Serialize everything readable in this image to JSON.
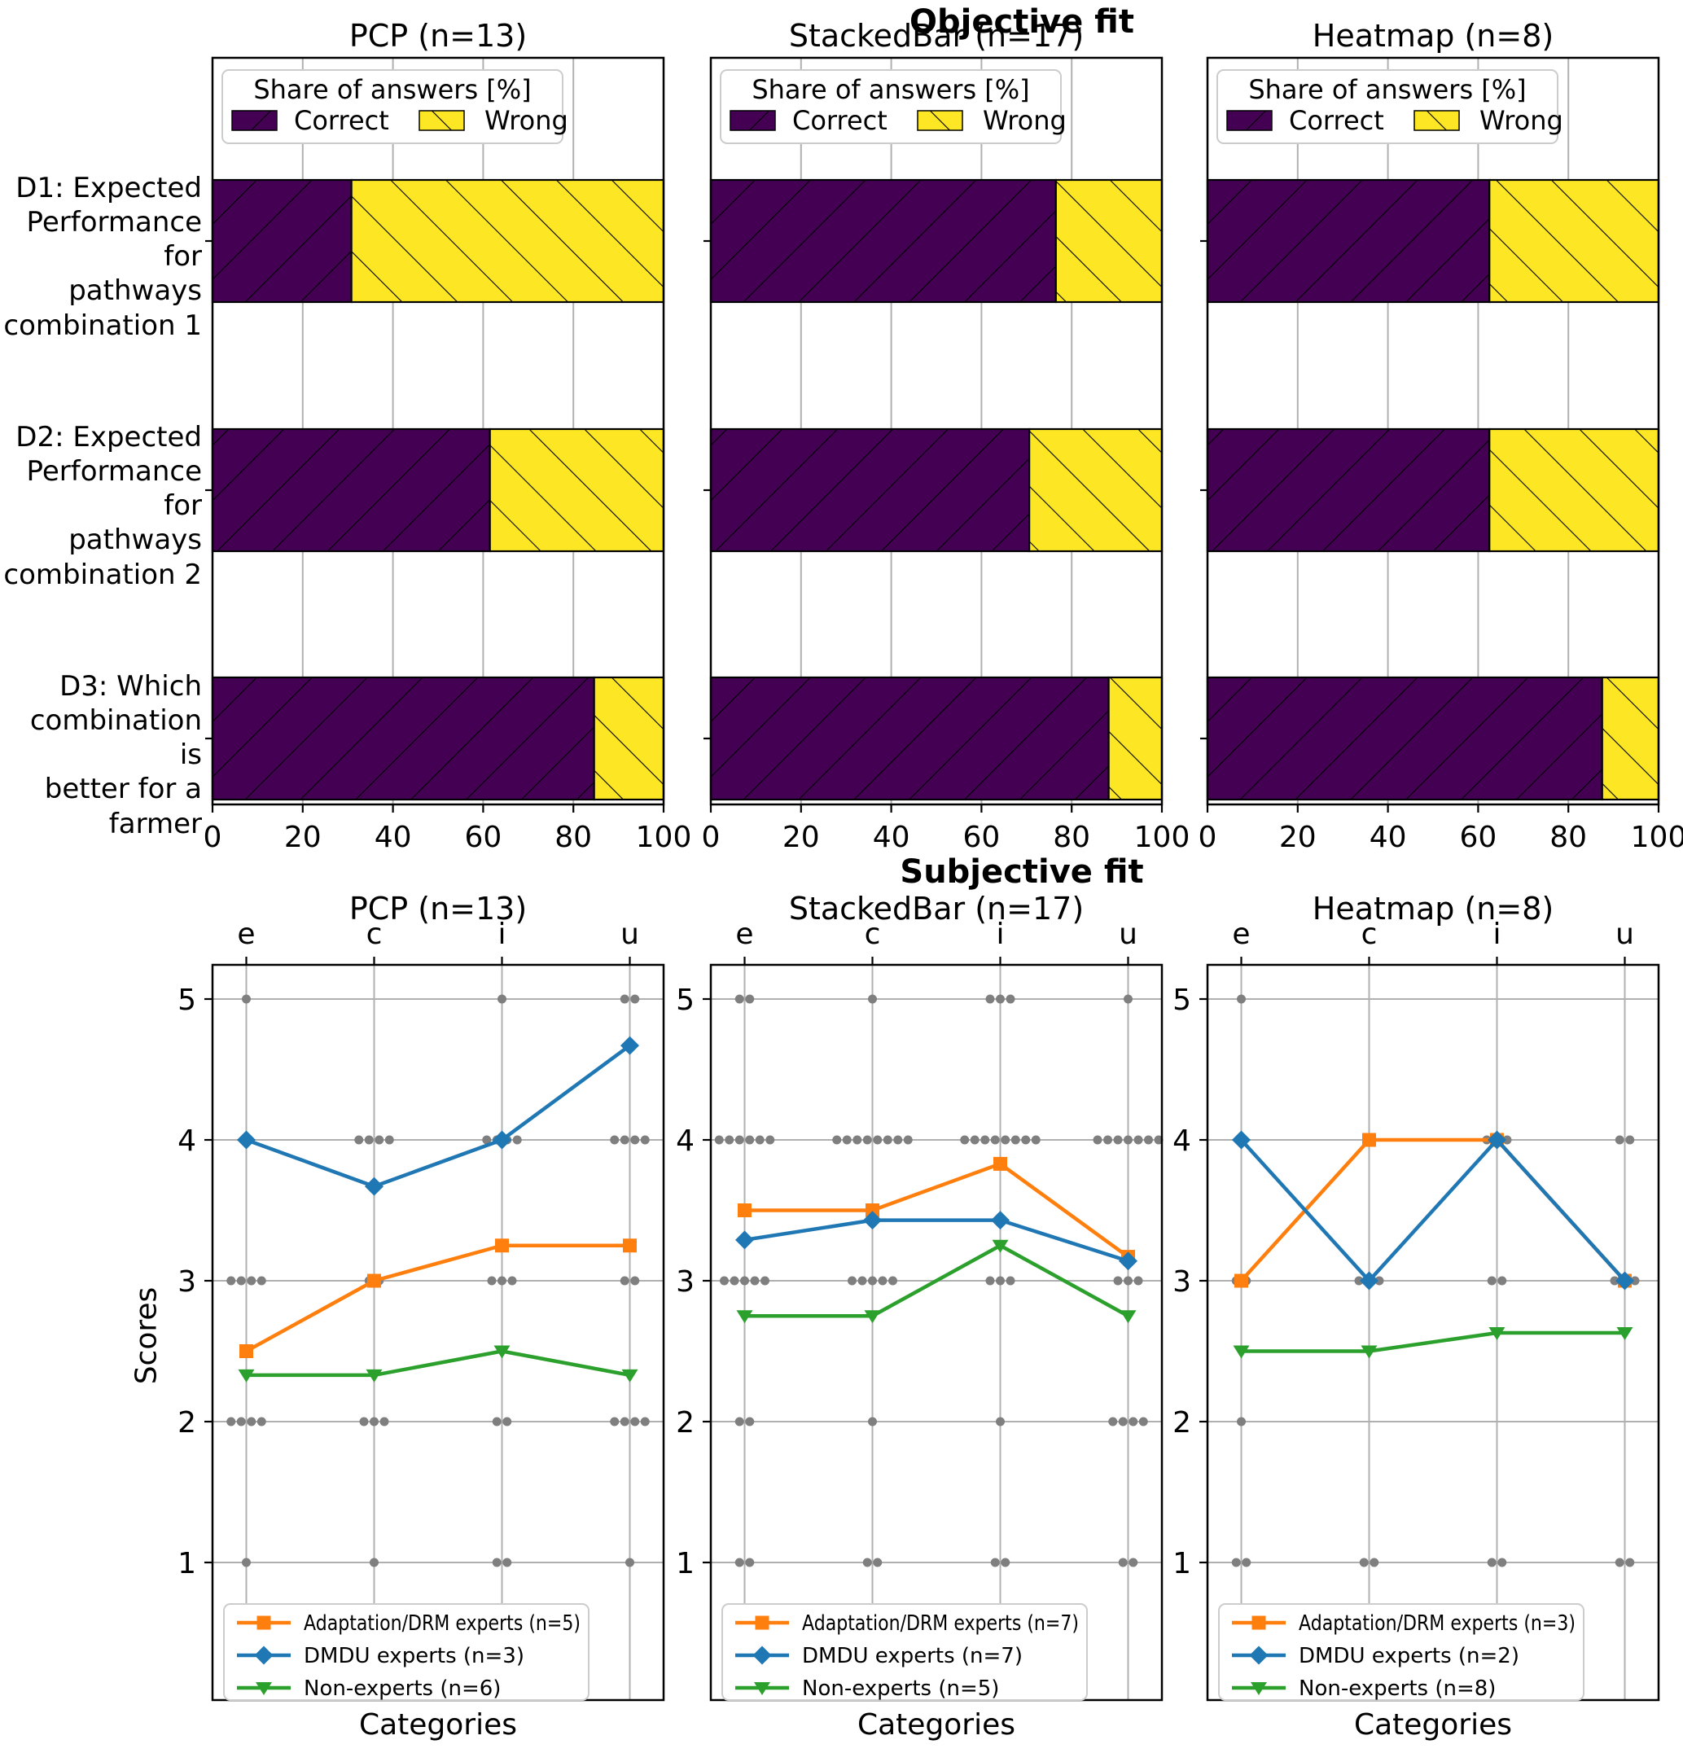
{
  "chart_data": [
    {
      "type": "bar",
      "suptitle": "Objective fit",
      "orientation": "horizontal",
      "xlim": [
        0,
        100
      ],
      "x_ticks": [
        0,
        20,
        40,
        60,
        80,
        100
      ],
      "legend_title": "Share of answers [%]",
      "legend_items": [
        {
          "label": "Correct",
          "color": "#440154",
          "hatch": "/"
        },
        {
          "label": "Wrong",
          "color": "#FDE725",
          "hatch": "\\"
        }
      ],
      "categories": [
        [
          "D1: Expected",
          "Performance for",
          "pathways",
          "combination 1"
        ],
        [
          "D2: Expected",
          "Performance for",
          "pathways",
          "combination 2"
        ],
        [
          "D3: Which",
          "combination is",
          "better for a",
          "farmer"
        ]
      ],
      "panels": [
        {
          "title": "PCP (n=13)",
          "correct": [
            30.8,
            61.5,
            84.6
          ],
          "wrong": [
            69.2,
            38.5,
            15.4
          ]
        },
        {
          "title": "StackedBar (n=17)",
          "correct": [
            76.5,
            70.6,
            88.2
          ],
          "wrong": [
            23.5,
            29.4,
            11.8
          ]
        },
        {
          "title": "Heatmap (n=8)",
          "correct": [
            62.5,
            62.5,
            87.5
          ],
          "wrong": [
            37.5,
            37.5,
            12.5
          ]
        }
      ]
    },
    {
      "type": "line",
      "suptitle": "Subjective fit",
      "xlabel": "Categories",
      "ylabel": "Scores",
      "categories": [
        "e",
        "c",
        "i",
        "u"
      ],
      "y_ticks": [
        5,
        4,
        3,
        2,
        1
      ],
      "ylim": [
        1,
        5
      ],
      "dot_color": "#7f7f7f",
      "grid": true,
      "legend_position": "lower left",
      "panels": [
        {
          "title": "PCP (n=13)",
          "series": [
            {
              "name": "Adaptation/DRM experts (n=5)",
              "color": "#ff7f0e",
              "marker": "square",
              "values": [
                2.5,
                3.0,
                3.25,
                3.25
              ]
            },
            {
              "name": "DMDU experts (n=3)",
              "color": "#1f77b4",
              "marker": "diamond",
              "values": [
                4.0,
                3.67,
                4.0,
                4.67
              ]
            },
            {
              "name": "Non-experts  (n=6)",
              "color": "#2ca02c",
              "marker": "triangle-down",
              "values": [
                2.33,
                2.33,
                2.5,
                2.33
              ]
            }
          ],
          "dots": {
            "5": [
              1,
              0,
              1,
              2
            ],
            "4": [
              1,
              4,
              4,
              4
            ],
            "3": [
              4,
              2,
              3,
              2
            ],
            "2": [
              4,
              3,
              2,
              4
            ],
            "1": [
              1,
              1,
              2,
              1
            ]
          }
        },
        {
          "title": "StackedBar (n=17)",
          "series": [
            {
              "name": "Adaptation/DRM experts (n=7)",
              "color": "#ff7f0e",
              "marker": "square",
              "values": [
                3.5,
                3.5,
                3.83,
                3.17
              ]
            },
            {
              "name": "DMDU experts (n=7)",
              "color": "#1f77b4",
              "marker": "diamond",
              "values": [
                3.29,
                3.43,
                3.43,
                3.14
              ]
            },
            {
              "name": "Non-experts  (n=5)",
              "color": "#2ca02c",
              "marker": "triangle-down",
              "values": [
                2.75,
                2.75,
                3.25,
                2.75
              ]
            }
          ],
          "dots": {
            "5": [
              2,
              1,
              3,
              1
            ],
            "4": [
              6,
              8,
              8,
              7
            ],
            "3": [
              5,
              5,
              3,
              3
            ],
            "2": [
              2,
              1,
              1,
              4
            ],
            "1": [
              2,
              2,
              2,
              2
            ]
          }
        },
        {
          "title": "Heatmap (n=8)",
          "series": [
            {
              "name": "Adaptation/DRM experts (n=3)",
              "color": "#ff7f0e",
              "marker": "square",
              "values": [
                3.0,
                4.0,
                4.0,
                3.0
              ]
            },
            {
              "name": "DMDU experts (n=2)",
              "color": "#1f77b4",
              "marker": "diamond",
              "values": [
                4.0,
                3.0,
                4.0,
                3.0
              ]
            },
            {
              "name": "Non-experts  (n=8)",
              "color": "#2ca02c",
              "marker": "triangle-down",
              "values": [
                2.5,
                2.5,
                2.63,
                2.63
              ]
            }
          ],
          "dots": {
            "5": [
              1,
              0,
              0,
              0
            ],
            "4": [
              0,
              1,
              3,
              2
            ],
            "3": [
              2,
              3,
              2,
              3
            ],
            "2": [
              1,
              0,
              0,
              0
            ],
            "1": [
              2,
              2,
              2,
              2
            ]
          }
        }
      ]
    }
  ]
}
